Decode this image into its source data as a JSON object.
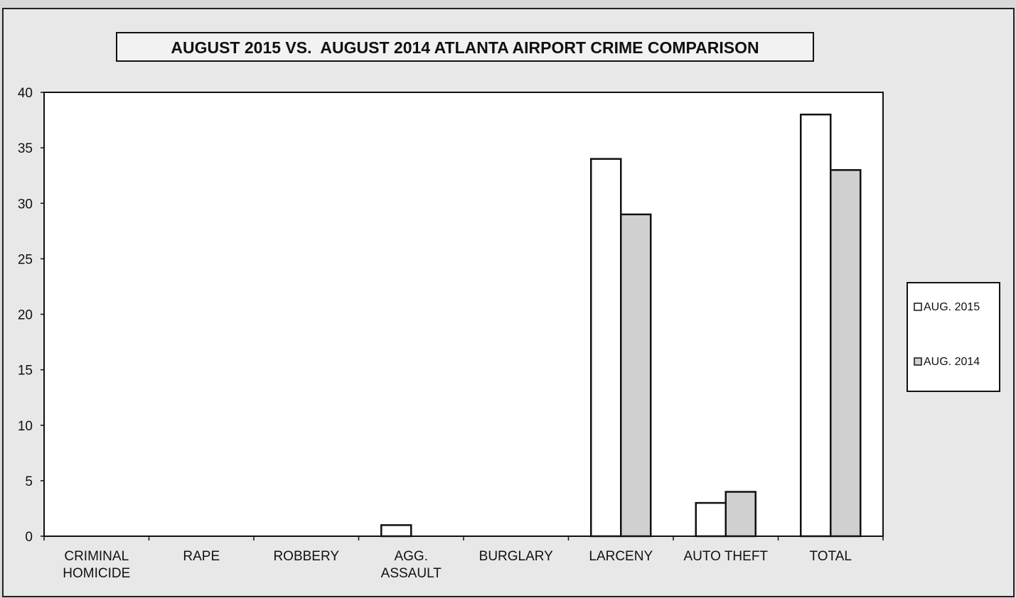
{
  "chart_data": {
    "type": "bar",
    "title": "AUGUST 2015 VS.  AUGUST 2014 ATLANTA AIRPORT CRIME COMPARISON",
    "categories": [
      [
        "CRIMINAL",
        "HOMICIDE"
      ],
      [
        "RAPE"
      ],
      [
        "ROBBERY"
      ],
      [
        "AGG.",
        "ASSAULT"
      ],
      [
        "BURGLARY"
      ],
      [
        "LARCENY"
      ],
      [
        "AUTO THEFT"
      ],
      [
        "TOTAL"
      ]
    ],
    "series": [
      {
        "name": "AUG. 2015",
        "values": [
          0,
          0,
          0,
          1,
          0,
          34,
          3,
          38
        ],
        "color": "#ffffff"
      },
      {
        "name": "AUG. 2014",
        "values": [
          0,
          0,
          0,
          0,
          0,
          29,
          4,
          33
        ],
        "color": "#d0d0d0"
      }
    ],
    "ylim": [
      0,
      40
    ],
    "yticks": [
      "0",
      "5",
      "10",
      "15",
      "20",
      "25",
      "30",
      "35",
      "40"
    ],
    "legend_position": "right",
    "grid": false
  }
}
